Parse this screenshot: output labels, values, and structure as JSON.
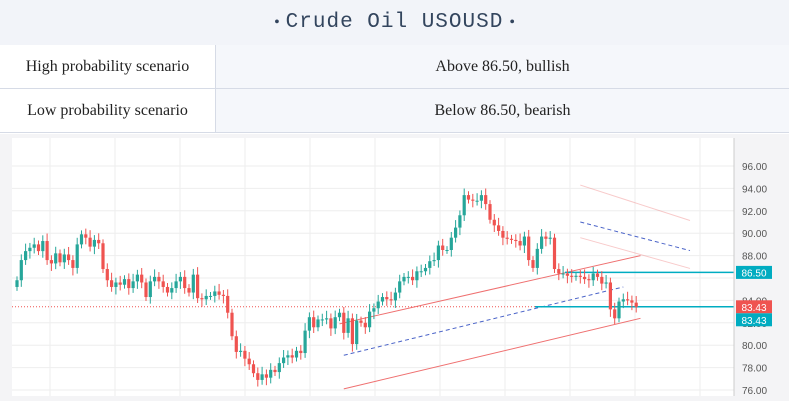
{
  "header": {
    "title": "Crude Oil USOUSD"
  },
  "scenarios": [
    {
      "label": "High probability scenario",
      "value": "Above 86.50, bullish"
    },
    {
      "label": "Low probability scenario",
      "value": "Below 86.50, bearish"
    }
  ],
  "colors": {
    "up": "#26a69a",
    "down": "#ef5350",
    "level_line": "#00acc1",
    "channel": "#ef7070",
    "midline": "#4a63c8",
    "price_line": "#ef5350"
  },
  "chart_data": {
    "type": "candlestick",
    "symbol": "USOUSD",
    "ylim": [
      75.9,
      96.4
    ],
    "ticks": [
      {
        "v": 96,
        "t": "96.00"
      },
      {
        "v": 94,
        "t": "94.00"
      },
      {
        "v": 92,
        "t": "92.00"
      },
      {
        "v": 90,
        "t": "90.00"
      },
      {
        "v": 88,
        "t": "88.00"
      },
      {
        "v": 84,
        "t": "84.00"
      },
      {
        "v": 82,
        "t": "82.00"
      },
      {
        "v": 80,
        "t": "80.00"
      },
      {
        "v": 78,
        "t": "78.00"
      },
      {
        "v": 76,
        "t": "76.00"
      }
    ],
    "levels": [
      {
        "value": 86.5,
        "label": "86.50",
        "color": "#00acc1"
      },
      {
        "value": 83.43,
        "label": "83.43",
        "color": "#00acc1"
      }
    ],
    "current_price": {
      "value": 83.43,
      "label": "83.43",
      "color": "#ef5350"
    },
    "candles_count": 145,
    "closes": [
      85.8,
      87.6,
      88.4,
      88.7,
      89.0,
      88.4,
      89.3,
      87.6,
      87.3,
      88.2,
      87.4,
      88.1,
      87.6,
      86.9,
      89.0,
      89.9,
      89.6,
      88.8,
      89.4,
      89.1,
      86.8,
      85.8,
      85.2,
      85.6,
      85.4,
      85.9,
      85.1,
      85.7,
      86.3,
      85.6,
      84.3,
      85.7,
      86.1,
      85.7,
      85.2,
      84.7,
      85.1,
      85.7,
      86.1,
      85.1,
      84.7,
      86.3,
      84.2,
      84.1,
      84.4,
      84.4,
      84.8,
      84.5,
      84.4,
      82.9,
      80.8,
      79.4,
      79.5,
      78.8,
      78.3,
      77.5,
      76.9,
      77.4,
      77.1,
      77.8,
      77.6,
      78.4,
      78.9,
      79.1,
      78.9,
      79.5,
      79.3,
      81.3,
      82.5,
      81.6,
      82.3,
      82.3,
      82.4,
      81.5,
      82.5,
      82.9,
      81.1,
      82.4,
      80.1,
      82.2,
      82.0,
      81.6,
      83.0,
      83.3,
      83.9,
      84.3,
      84.1,
      84.0,
      84.7,
      85.7,
      86.1,
      86.1,
      85.8,
      86.6,
      86.6,
      86.9,
      87.5,
      87.6,
      88.9,
      88.5,
      88.5,
      89.6,
      90.5,
      91.6,
      93.4,
      93.0,
      92.9,
      92.9,
      93.4,
      92.6,
      91.2,
      90.7,
      90.2,
      89.6,
      89.5,
      89.4,
      89.3,
      88.9,
      89.7,
      87.6,
      86.9,
      88.6,
      89.7,
      89.5,
      89.6,
      86.8,
      86.4,
      86.4,
      86.2,
      86.1,
      86.2,
      86.1,
      85.9,
      85.8,
      86.4,
      86.1,
      85.5,
      85.6,
      83.2,
      82.4,
      83.9,
      84.1,
      84.0,
      83.8,
      83.43
    ],
    "channels": [
      {
        "color": "#ef7070",
        "style": "solid",
        "from": {
          "i": 75,
          "v": 81.9
        },
        "to": {
          "i": 145,
          "v": 88.0
        }
      },
      {
        "color": "#ef7070",
        "style": "solid",
        "from": {
          "i": 76,
          "v": 76.1
        },
        "to": {
          "i": 145,
          "v": 82.4
        }
      },
      {
        "color": "#4a63c8",
        "style": "dashed",
        "from": {
          "i": 76,
          "v": 79.1
        },
        "to": {
          "i": 141,
          "v": 85.2
        }
      },
      {
        "color": "#ef8a8a",
        "style": "faint",
        "from": {
          "i": 131,
          "v": 94.3
        },
        "to": {
          "i": 210,
          "v": 84.5
        }
      },
      {
        "color": "#ef8a8a",
        "style": "faint",
        "from": {
          "i": 131,
          "v": 89.6
        },
        "to": {
          "i": 210,
          "v": 81.1
        }
      },
      {
        "color": "#4a63c8",
        "style": "dashed",
        "from": {
          "i": 131,
          "v": 91.0
        },
        "to": {
          "i": 205,
          "v": 83.6
        }
      }
    ],
    "grid": true
  }
}
